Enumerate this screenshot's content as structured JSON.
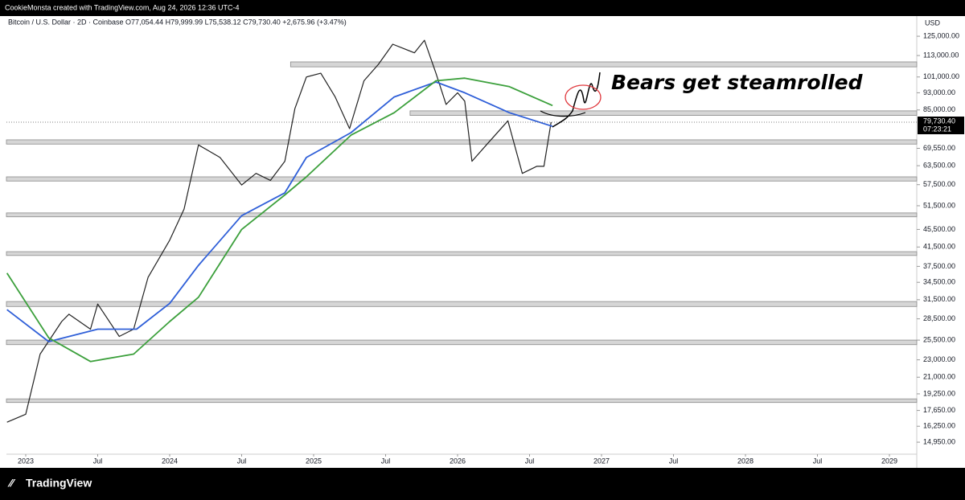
{
  "header": "CookieMonsta created with TradingView.com, Aug 24, 2026 12:36 UTC-4",
  "footer": "TradingView",
  "chart_data": {
    "type": "line",
    "title": "Bitcoin / U.S. Dollar · 2D · Coinbase   O77,054.44  H79,999.99  L75,538.12  C79,730.40  +2,675.96 (+3.47%)",
    "currency": "USD",
    "annotation": "Bears get steamrolled",
    "log_scale": true,
    "xlim": [
      2022.866,
      2029.19
    ],
    "ylim": [
      14040,
      138900
    ],
    "xticks": [
      {
        "value": 2023,
        "label": "2023"
      },
      {
        "value": 2023.5,
        "label": "Jul"
      },
      {
        "value": 2024,
        "label": "2024"
      },
      {
        "value": 2024.5,
        "label": "Jul"
      },
      {
        "value": 2025,
        "label": "2025"
      },
      {
        "value": 2025.5,
        "label": "Jul"
      },
      {
        "value": 2026,
        "label": "2026"
      },
      {
        "value": 2026.5,
        "label": "Jul"
      },
      {
        "value": 2027,
        "label": "2027"
      },
      {
        "value": 2027.5,
        "label": "Jul"
      },
      {
        "value": 2028,
        "label": "2028"
      },
      {
        "value": 2028.5,
        "label": "Jul"
      },
      {
        "value": 2029,
        "label": "2029"
      }
    ],
    "yticks": [
      {
        "value": 125000,
        "label": "125,000.00"
      },
      {
        "value": 113000,
        "label": "113,000.00"
      },
      {
        "value": 101000,
        "label": "101,000.00"
      },
      {
        "value": 93000,
        "label": "93,000.00"
      },
      {
        "value": 85000,
        "label": "85,000.00"
      },
      {
        "value": 69550,
        "label": "69,550.00"
      },
      {
        "value": 63500,
        "label": "63,500.00"
      },
      {
        "value": 57500,
        "label": "57,500.00"
      },
      {
        "value": 51500,
        "label": "51,500.00"
      },
      {
        "value": 45500,
        "label": "45,500.00"
      },
      {
        "value": 41500,
        "label": "41,500.00"
      },
      {
        "value": 37500,
        "label": "37,500.00"
      },
      {
        "value": 34500,
        "label": "34,500.00"
      },
      {
        "value": 31500,
        "label": "31,500.00"
      },
      {
        "value": 28500,
        "label": "28,500.00"
      },
      {
        "value": 25500,
        "label": "25,500.00"
      },
      {
        "value": 23000,
        "label": "23,000.00"
      },
      {
        "value": 21000,
        "label": "21,000.00"
      },
      {
        "value": 19250,
        "label": "19,250.00"
      },
      {
        "value": 17650,
        "label": "17,650.00"
      },
      {
        "value": 16250,
        "label": "16,250.00"
      },
      {
        "value": 14950,
        "label": "14,950.00"
      }
    ],
    "last_price": {
      "value": 79730.4,
      "label": "79,730.40"
    },
    "countdown": "07:23:21",
    "series": [
      {
        "color": "#222222",
        "x": [
          2022.87,
          2023.0,
          2023.1,
          2023.25,
          2023.3,
          2023.45,
          2023.5,
          2023.65,
          2023.75,
          2023.85,
          2024.0,
          2024.1,
          2024.2,
          2024.35,
          2024.5,
          2024.6,
          2024.7,
          2024.8,
          2024.87,
          2024.95,
          2025.05,
          2025.15,
          2025.25,
          2025.35,
          2025.45,
          2025.55,
          2025.7,
          2025.77,
          2025.85,
          2025.92,
          2026.0,
          2026.05,
          2026.1,
          2026.2,
          2026.35,
          2026.45,
          2026.55,
          2026.6,
          2026.65
        ],
        "values": [
          16600,
          17300,
          23700,
          28100,
          29200,
          27000,
          30800,
          26000,
          27000,
          35400,
          43000,
          50600,
          70800,
          66300,
          57400,
          61000,
          58800,
          65000,
          85600,
          101000,
          103000,
          91000,
          77100,
          99000,
          107900,
          119900,
          114600,
          122400,
          103000,
          87500,
          93000,
          89000,
          65000,
          70800,
          80300,
          61000,
          63300,
          63300,
          79730
        ]
      },
      {
        "color": "#2f5fd8",
        "x": [
          2022.87,
          2023.16,
          2023.5,
          2023.77,
          2024.0,
          2024.2,
          2024.5,
          2024.8,
          2024.95,
          2025.26,
          2025.56,
          2025.85,
          2026.05,
          2026.36,
          2026.66
        ],
        "values": [
          29900,
          25300,
          27000,
          27000,
          30900,
          37700,
          48900,
          55100,
          66300,
          75500,
          91000,
          98400,
          93000,
          83800,
          78000
        ]
      },
      {
        "color": "#3ca03c",
        "x": [
          2022.87,
          2023.16,
          2023.45,
          2023.75,
          2024.0,
          2024.2,
          2024.5,
          2024.8,
          2024.95,
          2025.26,
          2025.56,
          2025.85,
          2026.05,
          2026.36,
          2026.66
        ],
        "values": [
          36200,
          25800,
          22800,
          23700,
          28100,
          31900,
          45500,
          54500,
          59900,
          74500,
          83800,
          99000,
          100400,
          96000,
          87000
        ]
      }
    ],
    "zones": [
      {
        "start": 2024.84,
        "low": 106500,
        "high": 109300
      },
      {
        "start": 2025.67,
        "low": 82600,
        "high": 84600
      },
      {
        "start": 2022.866,
        "low": 71100,
        "high": 72700
      },
      {
        "start": 2022.866,
        "low": 58600,
        "high": 59900
      },
      {
        "start": 2022.866,
        "low": 48600,
        "high": 49600
      },
      {
        "start": 2022.866,
        "low": 39700,
        "high": 40500
      },
      {
        "start": 2022.866,
        "low": 30400,
        "high": 31200
      },
      {
        "start": 2022.866,
        "low": 24900,
        "high": 25500
      },
      {
        "start": 2022.866,
        "low": 18400,
        "high": 18750
      }
    ]
  }
}
